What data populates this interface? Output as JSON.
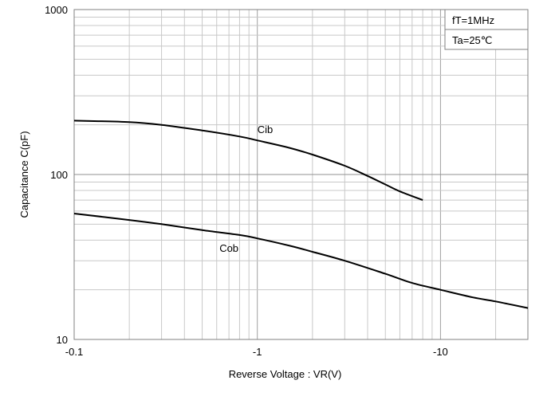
{
  "chart_data": {
    "type": "line",
    "title": "",
    "xlabel": "Reverse Voltage : VR(V)",
    "ylabel": "Capacitance  C(pF)",
    "x_scale": "log",
    "y_scale": "log",
    "xlim": [
      -0.1,
      -30
    ],
    "ylim": [
      10,
      1000
    ],
    "grid": true,
    "x_ticks": [
      {
        "value": -0.1,
        "label": "-0.1"
      },
      {
        "value": -1,
        "label": "-1"
      },
      {
        "value": -10,
        "label": "-10"
      }
    ],
    "y_ticks": [
      {
        "value": 10,
        "label": "10"
      },
      {
        "value": 100,
        "label": "100"
      },
      {
        "value": 1000,
        "label": "1000"
      }
    ],
    "legend_box": [
      "fT=1MHz",
      "Ta=25℃"
    ],
    "legend_placement": "top-right",
    "series": [
      {
        "name": "Cib",
        "color": "#000000",
        "x": [
          -0.1,
          -0.2,
          -0.3,
          -0.5,
          -0.8,
          -1,
          -1.5,
          -2,
          -3,
          -4,
          -5,
          -6,
          -8
        ],
        "y": [
          212,
          208,
          200,
          185,
          170,
          161,
          145,
          132,
          113,
          98,
          87,
          79,
          70
        ]
      },
      {
        "name": "Cob",
        "color": "#000000",
        "x": [
          -0.1,
          -0.2,
          -0.3,
          -0.5,
          -0.8,
          -1,
          -1.5,
          -2,
          -3,
          -5,
          -7,
          -10,
          -15,
          -20,
          -30
        ],
        "y": [
          58,
          53,
          50,
          46,
          43,
          41,
          37,
          34,
          30,
          25,
          22,
          20,
          18,
          17,
          15.5
        ]
      }
    ]
  }
}
